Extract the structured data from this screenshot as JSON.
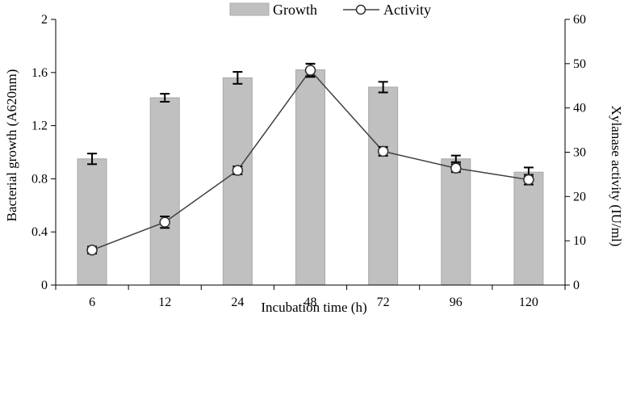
{
  "chart_data": {
    "type": "bar+line",
    "categories": [
      "6",
      "12",
      "24",
      "48",
      "72",
      "96",
      "120"
    ],
    "series": [
      {
        "name": "Growth",
        "kind": "bar",
        "axis": "left",
        "values": [
          0.95,
          1.41,
          1.56,
          1.62,
          1.49,
          0.95,
          0.85
        ],
        "errors": [
          0.04,
          0.03,
          0.045,
          0.045,
          0.04,
          0.025,
          0.035
        ],
        "color": "#c0c0c0"
      },
      {
        "name": "Activity",
        "kind": "line",
        "axis": "right",
        "values": [
          7.9,
          14.2,
          25.9,
          48.5,
          30.2,
          26.4,
          23.8
        ],
        "errors": [
          0.8,
          1.3,
          0.9,
          1.5,
          1.0,
          0.9,
          1.1
        ],
        "color": "#404040"
      }
    ],
    "xlabel": "Incubation time (h)",
    "ylabel": "Bacterial growth (A620nm)",
    "y2label": "Xylanase activity (IU/ml)",
    "ylim": [
      0,
      2
    ],
    "yticks": [
      "0",
      "0.4",
      "0.8",
      "1.2",
      "1.6",
      "2"
    ],
    "y2lim": [
      0,
      60
    ],
    "y2ticks": [
      "0",
      "10",
      "20",
      "30",
      "40",
      "50",
      "60"
    ],
    "legend": {
      "position": "top-center",
      "items": [
        "Growth",
        "Activity"
      ]
    },
    "grid": false
  }
}
